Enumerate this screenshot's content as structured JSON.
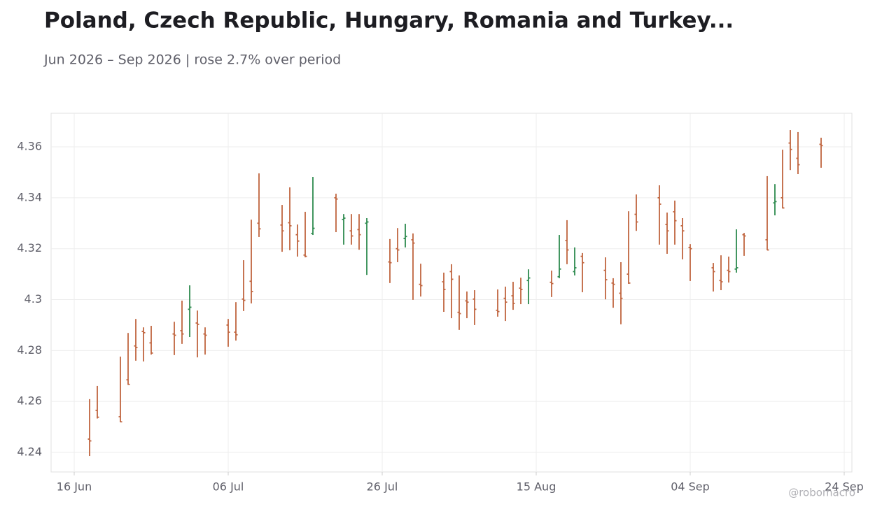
{
  "chart_data": {
    "type": "ohlc",
    "title": "Poland, Czech Republic, Hungary, Romania and Turkey...",
    "subtitle": "Jun 2026 – Sep 2026 | rose 2.7% over period",
    "watermark": "@robomacro",
    "up_color": "#2e8b4f",
    "down_color": "#c0653f",
    "grid": true,
    "xlim": [
      "2026-06-13",
      "2026-09-25"
    ],
    "xticks": [
      {
        "value": "2026-06-16",
        "label": "16 Jun"
      },
      {
        "value": "2026-07-06",
        "label": "06 Jul"
      },
      {
        "value": "2026-07-26",
        "label": "26 Jul"
      },
      {
        "value": "2026-08-15",
        "label": "15 Aug"
      },
      {
        "value": "2026-09-04",
        "label": "04 Sep"
      },
      {
        "value": "2026-09-24",
        "label": "24 Sep"
      }
    ],
    "ylim": [
      4.2323,
      4.3732
    ],
    "yticks": [
      4.24,
      4.26,
      4.28,
      4.3,
      4.32,
      4.34,
      4.36
    ],
    "x": [
      "2026-06-18",
      "2026-06-19",
      "2026-06-22",
      "2026-06-23",
      "2026-06-24",
      "2026-06-25",
      "2026-06-26",
      "2026-06-29",
      "2026-06-30",
      "2026-07-01",
      "2026-07-02",
      "2026-07-03",
      "2026-07-06",
      "2026-07-07",
      "2026-07-08",
      "2026-07-09",
      "2026-07-10",
      "2026-07-13",
      "2026-07-14",
      "2026-07-15",
      "2026-07-16",
      "2026-07-17",
      "2026-07-20",
      "2026-07-21",
      "2026-07-22",
      "2026-07-23",
      "2026-07-24",
      "2026-07-27",
      "2026-07-28",
      "2026-07-29",
      "2026-07-30",
      "2026-07-31",
      "2026-08-03",
      "2026-08-04",
      "2026-08-05",
      "2026-08-06",
      "2026-08-07",
      "2026-08-10",
      "2026-08-11",
      "2026-08-12",
      "2026-08-13",
      "2026-08-14",
      "2026-08-17",
      "2026-08-18",
      "2026-08-19",
      "2026-08-20",
      "2026-08-21",
      "2026-08-24",
      "2026-08-25",
      "2026-08-26",
      "2026-08-27",
      "2026-08-28",
      "2026-08-31",
      "2026-09-01",
      "2026-09-02",
      "2026-09-03",
      "2026-09-04",
      "2026-09-07",
      "2026-09-08",
      "2026-09-09",
      "2026-09-10",
      "2026-09-11",
      "2026-09-14",
      "2026-09-15",
      "2026-09-16",
      "2026-09-17",
      "2026-09-18",
      "2026-09-21"
    ],
    "open": [
      4.2452,
      4.2565,
      4.254,
      4.2685,
      4.2818,
      4.2875,
      4.283,
      4.2865,
      4.2878,
      4.2962,
      4.2908,
      4.2865,
      4.29,
      4.2872,
      4.3002,
      4.3072,
      4.33,
      4.3293,
      4.3302,
      4.3255,
      4.3175,
      4.326,
      4.34,
      4.3315,
      4.327,
      4.3275,
      4.33,
      4.3148,
      4.32,
      4.324,
      4.3235,
      4.306,
      4.307,
      4.311,
      4.295,
      4.2995,
      4.3002,
      4.2958,
      4.3005,
      4.3015,
      4.3045,
      4.3075,
      4.3068,
      4.309,
      4.3232,
      4.311,
      4.317,
      4.3115,
      4.3065,
      4.3025,
      4.31,
      4.3335,
      4.34,
      4.3295,
      4.3345,
      4.329,
      4.3205,
      4.3125,
      4.3075,
      4.3115,
      4.312,
      4.3255,
      4.3235,
      4.338,
      4.34,
      4.3615,
      4.3555,
      4.361
    ],
    "high": [
      4.2609,
      4.2661,
      4.2776,
      4.2869,
      4.2924,
      4.2891,
      4.2897,
      4.2913,
      4.2996,
      4.3056,
      4.2957,
      4.2891,
      4.2924,
      4.299,
      4.3155,
      4.3314,
      4.3496,
      4.3372,
      4.3441,
      4.3295,
      4.3345,
      4.3482,
      4.3416,
      4.3336,
      4.3336,
      4.3336,
      4.332,
      4.3238,
      4.3281,
      4.3298,
      4.326,
      4.3141,
      4.3106,
      4.3139,
      4.3095,
      4.3032,
      4.3037,
      4.304,
      4.3051,
      4.307,
      4.3086,
      4.3119,
      4.3114,
      4.3254,
      4.3312,
      4.3205,
      4.3183,
      4.3166,
      4.3084,
      4.3147,
      4.3347,
      4.3413,
      4.3449,
      4.3342,
      4.3389,
      4.332,
      4.3218,
      4.3144,
      4.3174,
      4.3169,
      4.3276,
      4.3262,
      4.3485,
      4.3454,
      4.3589,
      4.3666,
      4.3658,
      4.3636
    ],
    "low": [
      4.2386,
      4.2533,
      4.2518,
      4.2665,
      4.276,
      4.2757,
      4.2784,
      4.2782,
      4.2826,
      4.2853,
      4.2773,
      4.2784,
      4.2815,
      4.2839,
      4.2955,
      4.2985,
      4.3246,
      4.3188,
      4.3194,
      4.3169,
      4.3166,
      4.3254,
      4.3265,
      4.3216,
      4.3216,
      4.3196,
      4.3097,
      4.3065,
      4.3147,
      4.3205,
      4.2999,
      4.3012,
      4.2952,
      4.2927,
      4.2881,
      4.2927,
      4.29,
      4.2933,
      4.2916,
      4.296,
      4.2982,
      4.2982,
      4.301,
      4.3084,
      4.3139,
      4.3095,
      4.3029,
      4.3001,
      4.2968,
      4.2903,
      4.3062,
      4.327,
      4.3216,
      4.318,
      4.3216,
      4.3158,
      4.3073,
      4.3032,
      4.3037,
      4.3067,
      4.3106,
      4.3172,
      4.3194,
      4.3331,
      4.3358,
      4.3509,
      4.3493,
      4.3518
    ],
    "close": [
      4.2445,
      4.2538,
      4.252,
      4.2667,
      4.2812,
      4.287,
      4.279,
      4.286,
      4.2865,
      4.297,
      4.2903,
      4.286,
      4.2872,
      4.2862,
      4.2997,
      4.3032,
      4.3278,
      4.327,
      4.329,
      4.323,
      4.317,
      4.328,
      4.3395,
      4.332,
      4.325,
      4.3255,
      4.3305,
      4.3145,
      4.3195,
      4.3248,
      4.3222,
      4.3055,
      4.304,
      4.308,
      4.2945,
      4.299,
      4.2962,
      4.2953,
      4.299,
      4.2985,
      4.304,
      4.3085,
      4.3063,
      4.312,
      4.3195,
      4.3125,
      4.3145,
      4.3078,
      4.306,
      4.3005,
      4.3065,
      4.3305,
      4.3375,
      4.327,
      4.331,
      4.327,
      4.32,
      4.311,
      4.307,
      4.311,
      4.3125,
      4.325,
      4.3195,
      4.3385,
      4.336,
      4.359,
      4.353,
      4.3605
    ]
  }
}
